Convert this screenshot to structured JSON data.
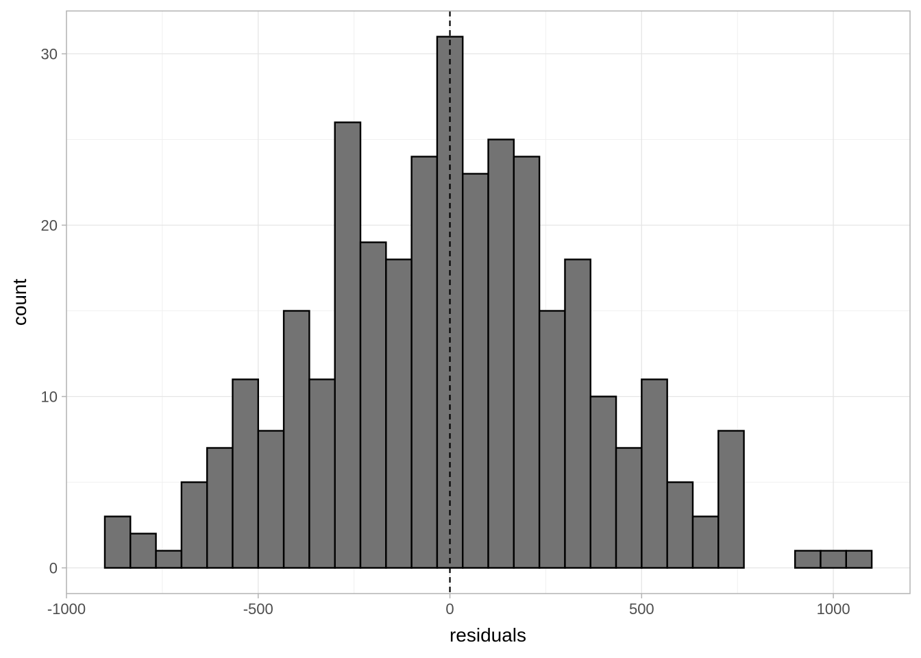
{
  "chart_data": {
    "type": "histogram",
    "xlabel": "residuals",
    "ylabel": "count",
    "xlim": [
      -1000,
      1200
    ],
    "ylim": [
      -1.5,
      32.5
    ],
    "xticks": [
      -1000,
      -500,
      0,
      500,
      1000
    ],
    "xtick_labels": [
      "-1000",
      "-500",
      "0",
      "500",
      "1000"
    ],
    "yticks": [
      0,
      10,
      20,
      30
    ],
    "ytick_labels": [
      "0",
      "10",
      "20",
      "30"
    ],
    "grid": true,
    "bin_width": 66.67,
    "bin_start": -900,
    "counts": [
      3,
      2,
      1,
      5,
      7,
      11,
      8,
      15,
      11,
      26,
      19,
      18,
      24,
      31,
      23,
      25,
      24,
      15,
      18,
      10,
      7,
      11,
      5,
      3,
      8,
      0,
      0,
      1,
      1,
      1
    ],
    "reference_line": {
      "x": 0,
      "style": "dashed"
    },
    "colors": {
      "bar_fill": "#737373",
      "bar_stroke": "#000000",
      "grid": "#e5e5e5",
      "panel_border": "#b3b3b3"
    }
  }
}
